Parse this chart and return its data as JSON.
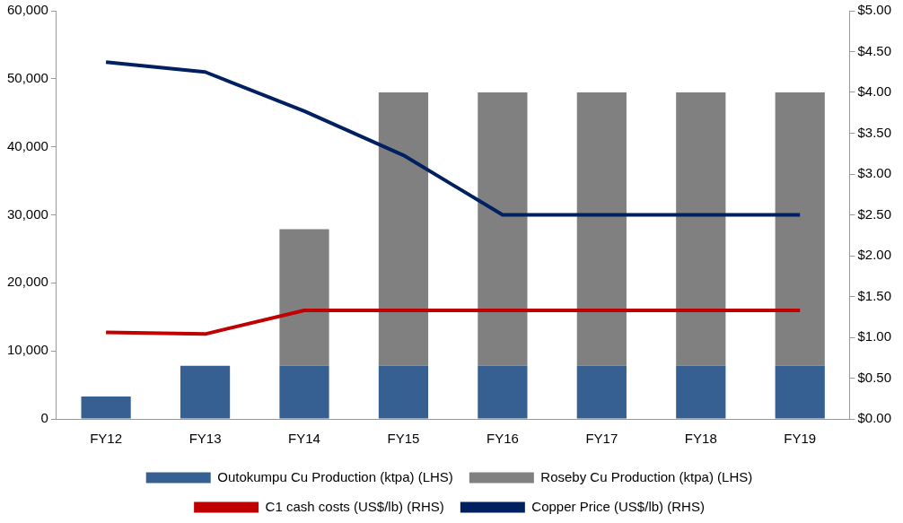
{
  "chart_data": {
    "type": "bar",
    "stacked": true,
    "categories": [
      "FY12",
      "FY13",
      "FY14",
      "FY15",
      "FY16",
      "FY17",
      "FY18",
      "FY19"
    ],
    "series": [
      {
        "name": "Outokumpu Cu Production (ktpa) (LHS)",
        "color": "#366092",
        "values": [
          3300,
          7800,
          7800,
          7800,
          7800,
          7800,
          7800,
          7800
        ]
      },
      {
        "name": "Roseby Cu Production (ktpa) (LHS)",
        "color": "#808080",
        "values": [
          null,
          null,
          20100,
          40200,
          40200,
          40200,
          40200,
          40200
        ]
      },
      {
        "name": "C1 cash costs (US$/lb) (RHS)",
        "type": "line",
        "axis": "y2",
        "color": "#c00000",
        "values": [
          1.06,
          1.04,
          1.33,
          1.33,
          1.33,
          1.33,
          1.33,
          1.33
        ]
      },
      {
        "name": "Copper Price (US$/lb) (RHS)",
        "type": "line",
        "axis": "y2",
        "color": "#002060",
        "values": [
          4.37,
          4.25,
          3.77,
          3.23,
          2.5,
          2.5,
          2.5,
          2.5
        ]
      }
    ],
    "ylim": [
      0,
      60000
    ],
    "yticks": [
      {
        "value": 0,
        "label": "0"
      },
      {
        "value": 10000,
        "label": "10,000"
      },
      {
        "value": 20000,
        "label": "20,000"
      },
      {
        "value": 30000,
        "label": "30,000"
      },
      {
        "value": 40000,
        "label": "40,000"
      },
      {
        "value": 50000,
        "label": "50,000"
      },
      {
        "value": 60000,
        "label": "60,000"
      }
    ],
    "y2lim": [
      0,
      5
    ],
    "y2ticks": [
      {
        "value": 0,
        "label": "$0.00"
      },
      {
        "value": 0.5,
        "label": "$0.50"
      },
      {
        "value": 1,
        "label": "$1.00"
      },
      {
        "value": 1.5,
        "label": "$1.50"
      },
      {
        "value": 2,
        "label": "$2.00"
      },
      {
        "value": 2.5,
        "label": "$2.50"
      },
      {
        "value": 3,
        "label": "$3.00"
      },
      {
        "value": 3.5,
        "label": "$3.50"
      },
      {
        "value": 4,
        "label": "$4.00"
      },
      {
        "value": 4.5,
        "label": "$4.50"
      },
      {
        "value": 5,
        "label": "$5.00"
      }
    ],
    "grid": false,
    "legend": "bottom",
    "marker": "none",
    "line_style": "solid"
  }
}
